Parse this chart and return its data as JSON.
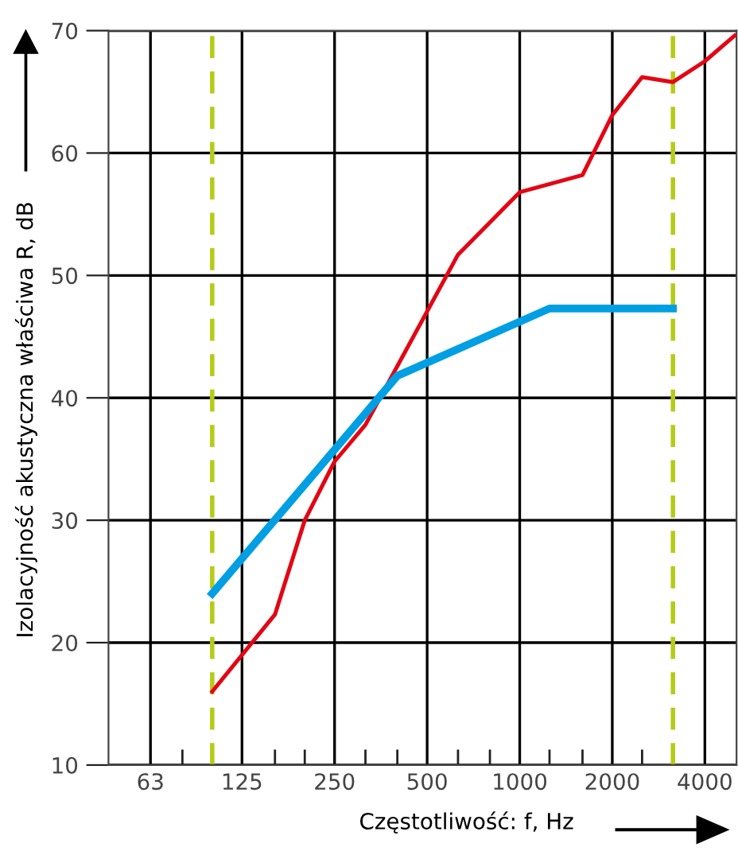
{
  "chart_data": {
    "type": "line",
    "xlabel": "Częstotliwość: f, Hz",
    "ylabel": "Izolacyjność akustyczna właściwa R, dB",
    "log": "x",
    "xlim": [
      46,
      5070
    ],
    "ylim": [
      10,
      70
    ],
    "xticks": [
      63,
      125,
      250,
      500,
      1000,
      2000,
      4000,
      {
        "value": 80,
        "label": null
      },
      {
        "value": 160,
        "label": null
      },
      {
        "value": 200,
        "label": null
      },
      {
        "value": 315,
        "label": null
      },
      {
        "value": 400,
        "label": null
      },
      {
        "value": 630,
        "label": null
      },
      {
        "value": 800,
        "label": null
      },
      {
        "value": 1250,
        "label": null
      },
      {
        "value": 1600,
        "label": null
      },
      {
        "value": 2500,
        "label": null
      }
    ],
    "yticks": [
      10,
      20,
      30,
      40,
      50,
      60,
      70
    ],
    "grid": true,
    "series": [
      {
        "color": "#e30613",
        "x": [
          100,
          160,
          200,
          250,
          315,
          630,
          1000,
          1600,
          2000,
          2500,
          3150,
          4000,
          5000
        ],
        "values": [
          16.0,
          22.3,
          30.0,
          34.8,
          37.8,
          51.7,
          56.8,
          58.2,
          63.1,
          66.2,
          65.8,
          67.5,
          69.6
        ]
      },
      {
        "color": "#009fe3",
        "x": [
          100,
          400,
          1250,
          3150
        ],
        "values": [
          24.0,
          41.8,
          47.3,
          47.3
        ]
      }
    ],
    "ref_lines": [
      {
        "axis": "x",
        "value": 100,
        "label": null,
        "color": "#b5cc18",
        "line_style": "dashed"
      },
      {
        "axis": "x",
        "value": 3150,
        "label": null,
        "color": "#b5cc18",
        "line_style": "dashed"
      }
    ]
  }
}
